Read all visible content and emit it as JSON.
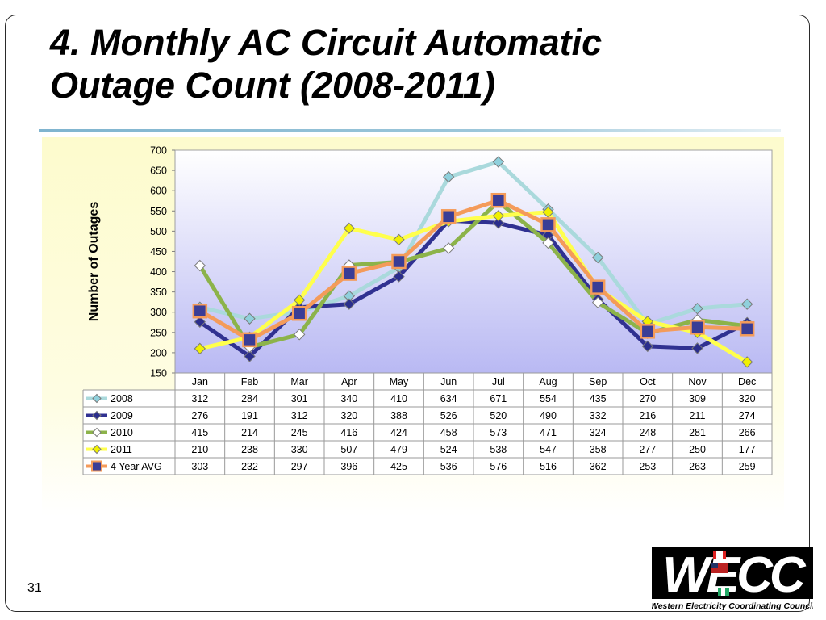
{
  "slide": {
    "title_line1": "4. Monthly AC Circuit Automatic",
    "title_line2": "Outage Count (2008-2011)",
    "page_number": "31"
  },
  "logo": {
    "text": "WECC",
    "caption": "Western Electricity Coordinating Council"
  },
  "chart_data": {
    "type": "line",
    "title": "",
    "xlabel": "",
    "ylabel": "Number of Outages",
    "ylim": [
      150,
      700
    ],
    "yticks": [
      150,
      200,
      250,
      300,
      350,
      400,
      450,
      500,
      550,
      600,
      650,
      700
    ],
    "categories": [
      "Jan",
      "Feb",
      "Mar",
      "Apr",
      "May",
      "Jun",
      "Jul",
      "Aug",
      "Sep",
      "Oct",
      "Nov",
      "Dec"
    ],
    "grid": false,
    "legend": "data-table",
    "series": [
      {
        "name": "2008",
        "values": [
          312,
          284,
          301,
          340,
          410,
          634,
          671,
          554,
          435,
          270,
          309,
          320
        ],
        "color": "#aad9dc",
        "marker": "diamond",
        "marker_color": "#8fd0dc"
      },
      {
        "name": "2009",
        "values": [
          276,
          191,
          312,
          320,
          388,
          526,
          520,
          490,
          332,
          216,
          211,
          274
        ],
        "color": "#303191",
        "marker": "diamond",
        "marker_color": "#2b2e8c"
      },
      {
        "name": "2010",
        "values": [
          415,
          214,
          245,
          416,
          424,
          458,
          573,
          471,
          324,
          248,
          281,
          266
        ],
        "color": "#8cb34a",
        "marker": "diamond",
        "marker_color": "#ffffff"
      },
      {
        "name": "2011",
        "values": [
          210,
          238,
          330,
          507,
          479,
          524,
          538,
          547,
          358,
          277,
          250,
          177
        ],
        "color": "#ffff4d",
        "marker": "diamond",
        "marker_color": "#f0f000"
      },
      {
        "name": "4 Year AVG",
        "values": [
          303,
          232,
          297,
          396,
          425,
          536,
          576,
          516,
          362,
          253,
          263,
          259
        ],
        "color": "#f49b5a",
        "marker": "square",
        "marker_color": "#3a3d96"
      }
    ]
  }
}
